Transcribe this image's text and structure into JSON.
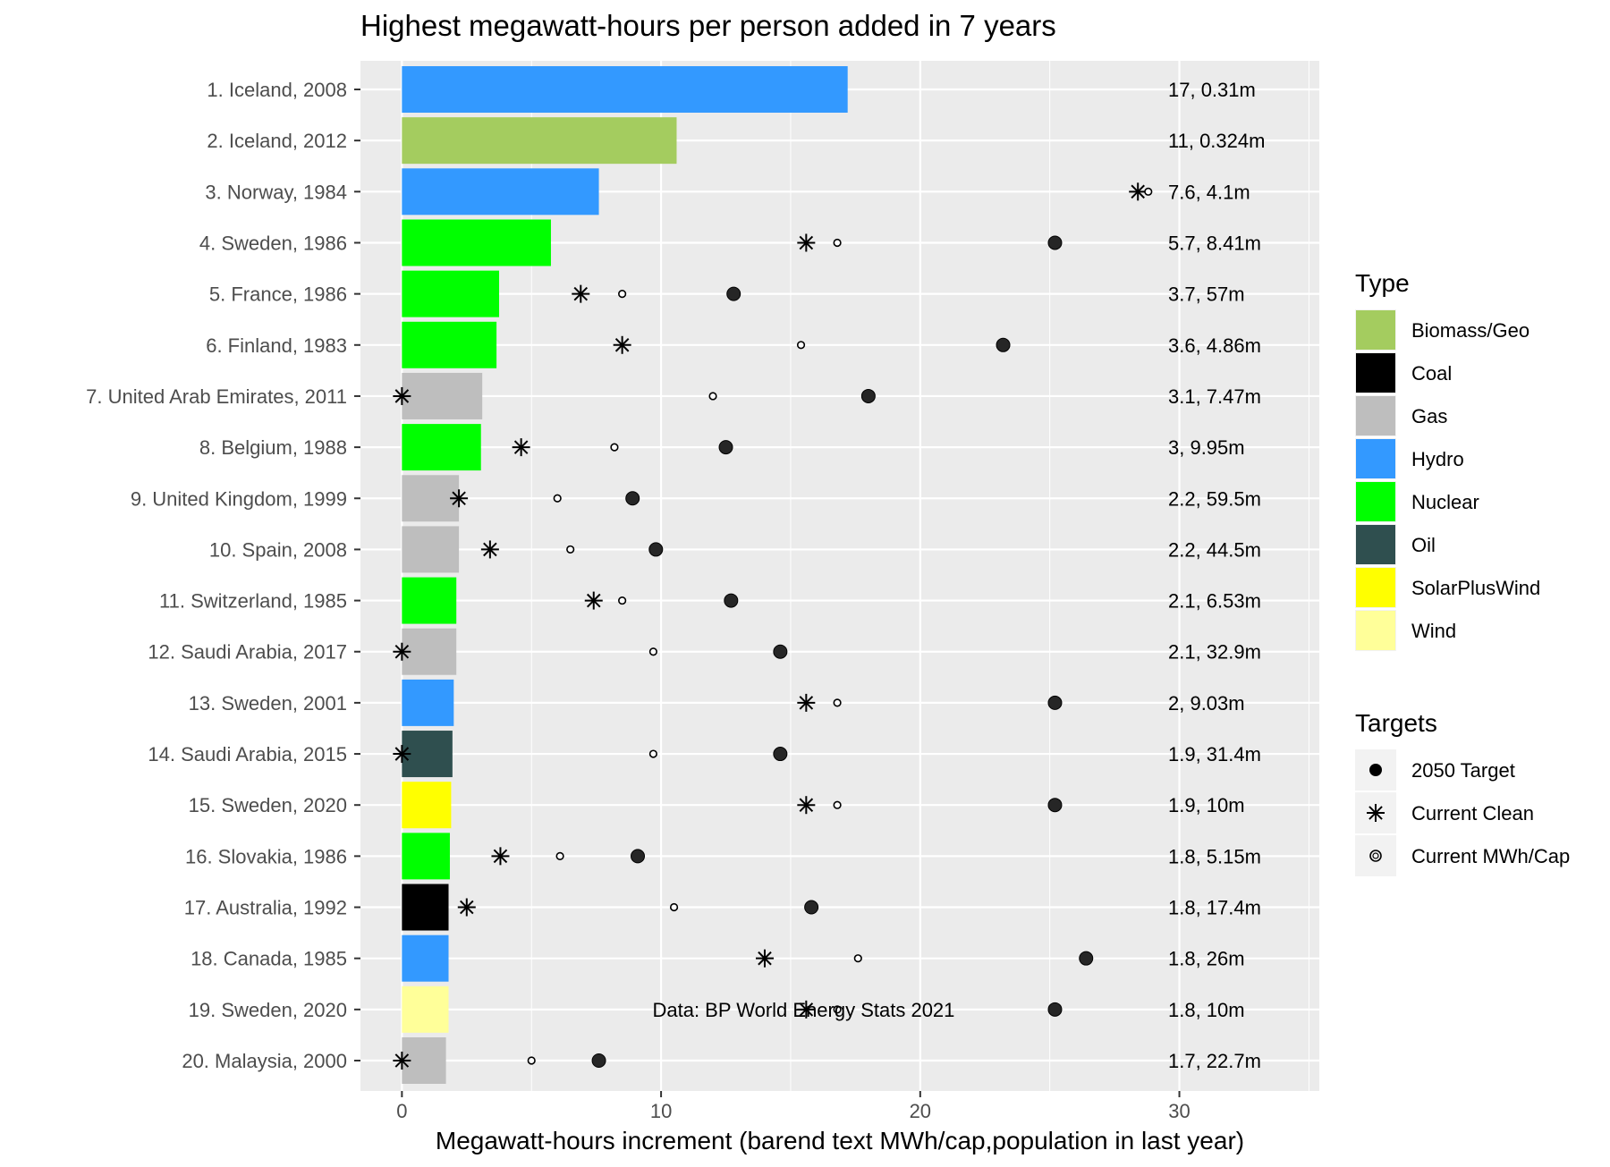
{
  "chart_data": {
    "type": "bar",
    "orientation": "horizontal",
    "title": "Highest megawatt-hours per person added in 7 years",
    "xlabel": "Megawatt-hours increment (barend text MWh/cap,population in last year)",
    "ylabel": "",
    "xlim": [
      -1.6,
      35.4
    ],
    "xticks": [
      0,
      10,
      20,
      30
    ],
    "grid": true,
    "annotation": "Data: BP World Energy Stats 2021",
    "annotation_x": 15.5,
    "annotation_row": 19,
    "categories": [
      "1. Iceland, 2008",
      "2. Iceland, 2012",
      "3. Norway, 1984",
      "4. Sweden, 1986",
      "5. France, 1986",
      "6. Finland, 1983",
      "7. United Arab Emirates, 2011",
      "8. Belgium, 1988",
      "9. United Kingdom, 1999",
      "10. Spain, 2008",
      "11. Switzerland, 1985",
      "12. Saudi Arabia, 2017",
      "13. Sweden, 2001",
      "14. Saudi Arabia, 2015",
      "15. Sweden, 2020",
      "16. Slovakia, 1986",
      "17. Australia, 1992",
      "18. Canada, 1985",
      "19. Sweden, 2020",
      "20. Malaysia, 2000"
    ],
    "values": [
      17.2,
      10.6,
      7.6,
      5.75,
      3.75,
      3.65,
      3.1,
      3.05,
      2.2,
      2.2,
      2.1,
      2.1,
      2.0,
      1.95,
      1.9,
      1.85,
      1.8,
      1.8,
      1.8,
      1.7
    ],
    "types": [
      "Hydro",
      "Biomass/Geo",
      "Hydro",
      "Nuclear",
      "Nuclear",
      "Nuclear",
      "Gas",
      "Nuclear",
      "Gas",
      "Gas",
      "Nuclear",
      "Gas",
      "Hydro",
      "Oil",
      "SolarPlusWind",
      "Nuclear",
      "Coal",
      "Hydro",
      "Wind",
      "Gas"
    ],
    "bar_end_labels": [
      "17, 0.31m",
      "11, 0.324m",
      "7.6, 4.1m",
      "5.7, 8.41m",
      "3.7, 57m",
      "3.6, 4.86m",
      "3.1, 7.47m",
      "3, 9.95m",
      "2.2, 59.5m",
      "2.2, 44.5m",
      "2.1, 6.53m",
      "2.1, 32.9m",
      "2, 9.03m",
      "1.9, 31.4m",
      "1.9, 10m",
      "1.8, 5.15m",
      "1.8, 17.4m",
      "1.8, 26m",
      "1.8, 10m",
      "1.7, 22.7m"
    ],
    "target_2050": [
      null,
      null,
      null,
      25.2,
      12.8,
      23.2,
      18.0,
      12.5,
      8.9,
      9.8,
      12.7,
      14.6,
      25.2,
      14.6,
      25.2,
      9.1,
      15.8,
      26.4,
      25.2,
      7.6
    ],
    "current_clean": [
      null,
      null,
      28.4,
      15.6,
      6.9,
      8.5,
      0,
      4.6,
      2.2,
      3.4,
      7.4,
      0,
      15.6,
      0,
      15.6,
      3.8,
      2.5,
      14.0,
      15.6,
      0
    ],
    "current_mwh_cap": [
      null,
      null,
      28.8,
      16.8,
      8.5,
      15.4,
      12.0,
      8.2,
      6.0,
      6.5,
      8.5,
      9.7,
      16.8,
      9.7,
      16.8,
      6.1,
      10.5,
      17.6,
      16.8,
      5.0
    ],
    "legend_position": "right",
    "legend": {
      "type_title": "Type",
      "types": [
        {
          "label": "Biomass/Geo",
          "color": "#a4cc5f"
        },
        {
          "label": "Coal",
          "color": "#000000"
        },
        {
          "label": "Gas",
          "color": "#bebebe"
        },
        {
          "label": "Hydro",
          "color": "#3399ff"
        },
        {
          "label": "Nuclear",
          "color": "#00ff00"
        },
        {
          "label": "Oil",
          "color": "#2f4f4f"
        },
        {
          "label": "SolarPlusWind",
          "color": "#ffff00"
        },
        {
          "label": "Wind",
          "color": "#ffff99"
        }
      ],
      "targets_title": "Targets",
      "targets": [
        {
          "label": "2050 Target",
          "shape": "filled-circle"
        },
        {
          "label": "Current Clean",
          "shape": "asterisk"
        },
        {
          "label": "Current MWh/Cap",
          "shape": "open-circle"
        }
      ]
    }
  }
}
